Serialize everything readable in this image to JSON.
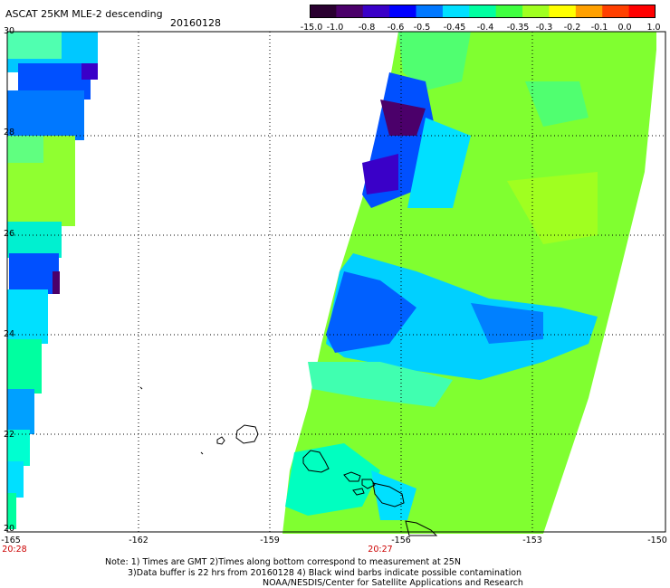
{
  "header": {
    "title": "ASCAT 25KM MLE-2 descending",
    "date": "20160128"
  },
  "colorbar": {
    "labels": [
      "-15.0",
      "-1.0",
      "-0.8",
      "-0.6",
      "-0.5",
      "-0.45",
      "-0.4",
      "-0.35",
      "-0.3",
      "-0.2",
      "-0.1",
      "0.0",
      "1.0"
    ],
    "colors": [
      "#2a0030",
      "#4b006a",
      "#3a00c8",
      "#0000ff",
      "#0078ff",
      "#00e0ff",
      "#00ffa0",
      "#40ff40",
      "#a0ff20",
      "#ffff00",
      "#ffa000",
      "#ff4000",
      "#ff0000"
    ]
  },
  "axes": {
    "y_labels": [
      "30",
      "28",
      "26",
      "24",
      "22",
      "20"
    ],
    "x_labels": [
      "-165",
      "-162",
      "-159",
      "-156",
      "-153",
      "-150"
    ]
  },
  "pass_times": [
    "20:28",
    "20:27"
  ],
  "notes": {
    "line1": "Note: 1) Times are GMT 2)Times along bottom correspond to measurement at 25N",
    "line2": "3)Data buffer is 22 hrs from 20160128 4) Black wind barbs indicate possible contamination",
    "line3": "NOAA/NESDIS/Center for Satellite Applications and Research"
  }
}
